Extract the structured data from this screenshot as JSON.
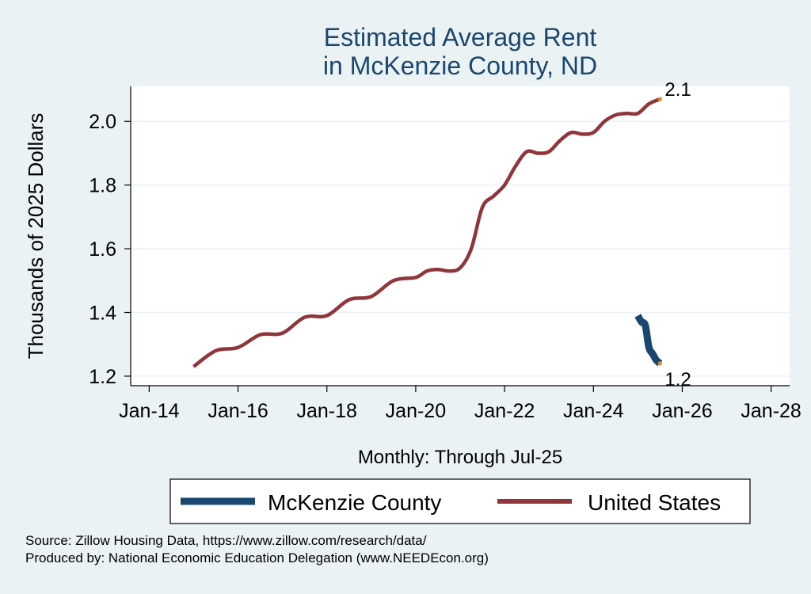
{
  "chart_data": {
    "type": "line",
    "title": [
      "Estimated Average Rent",
      "in McKenzie County, ND"
    ],
    "ylabel": "Thousands of 2025 Dollars",
    "xlabel": "Monthly: Through Jul-25",
    "ylim": [
      1.17,
      2.11
    ],
    "yticks": [
      1.2,
      1.4,
      1.6,
      1.8,
      2.0
    ],
    "ytick_labels": [
      "1.2",
      "1.4",
      "1.6",
      "1.8",
      "2.0"
    ],
    "xlim": [
      "2013-08",
      "2028-06"
    ],
    "xticks": [
      "2014-01",
      "2016-01",
      "2018-01",
      "2020-01",
      "2022-01",
      "2024-01",
      "2026-01",
      "2028-01"
    ],
    "xtick_labels": [
      "Jan-14",
      "Jan-16",
      "Jan-18",
      "Jan-20",
      "Jan-22",
      "Jan-24",
      "Jan-26",
      "Jan-28"
    ],
    "grid": true,
    "legend_position": "bottom",
    "series": [
      {
        "name": "McKenzie County",
        "color": "#1a476f",
        "end_label": "1.2",
        "points": [
          [
            "2025-01",
            1.39
          ],
          [
            "2025-02",
            1.37
          ],
          [
            "2025-03",
            1.36
          ],
          [
            "2025-04",
            1.29
          ],
          [
            "2025-05",
            1.27
          ],
          [
            "2025-06",
            1.25
          ],
          [
            "2025-07",
            1.24
          ]
        ]
      },
      {
        "name": "United States",
        "color": "#90353b",
        "end_label": "2.1",
        "points": [
          [
            "2015-01",
            1.23
          ],
          [
            "2015-07",
            1.28
          ],
          [
            "2016-01",
            1.29
          ],
          [
            "2016-07",
            1.33
          ],
          [
            "2017-01",
            1.335
          ],
          [
            "2017-07",
            1.385
          ],
          [
            "2018-01",
            1.39
          ],
          [
            "2018-07",
            1.44
          ],
          [
            "2019-01",
            1.45
          ],
          [
            "2019-07",
            1.5
          ],
          [
            "2020-01",
            1.51
          ],
          [
            "2020-04",
            1.53
          ],
          [
            "2020-07",
            1.535
          ],
          [
            "2020-10",
            1.53
          ],
          [
            "2021-01",
            1.54
          ],
          [
            "2021-04",
            1.6
          ],
          [
            "2021-07",
            1.73
          ],
          [
            "2021-10",
            1.765
          ],
          [
            "2022-01",
            1.8
          ],
          [
            "2022-04",
            1.86
          ],
          [
            "2022-07",
            1.905
          ],
          [
            "2022-10",
            1.9
          ],
          [
            "2023-01",
            1.905
          ],
          [
            "2023-04",
            1.94
          ],
          [
            "2023-07",
            1.965
          ],
          [
            "2023-10",
            1.96
          ],
          [
            "2024-01",
            1.965
          ],
          [
            "2024-04",
            2.0
          ],
          [
            "2024-07",
            2.02
          ],
          [
            "2024-10",
            2.025
          ],
          [
            "2025-01",
            2.025
          ],
          [
            "2025-04",
            2.055
          ],
          [
            "2025-07",
            2.07
          ]
        ]
      }
    ]
  },
  "footer": {
    "source": "Source: Zillow Housing Data, https://www.zillow.com/research/data/",
    "produced": "Produced by: National Economic Education Delegation (www.NEEDEcon.org)"
  }
}
